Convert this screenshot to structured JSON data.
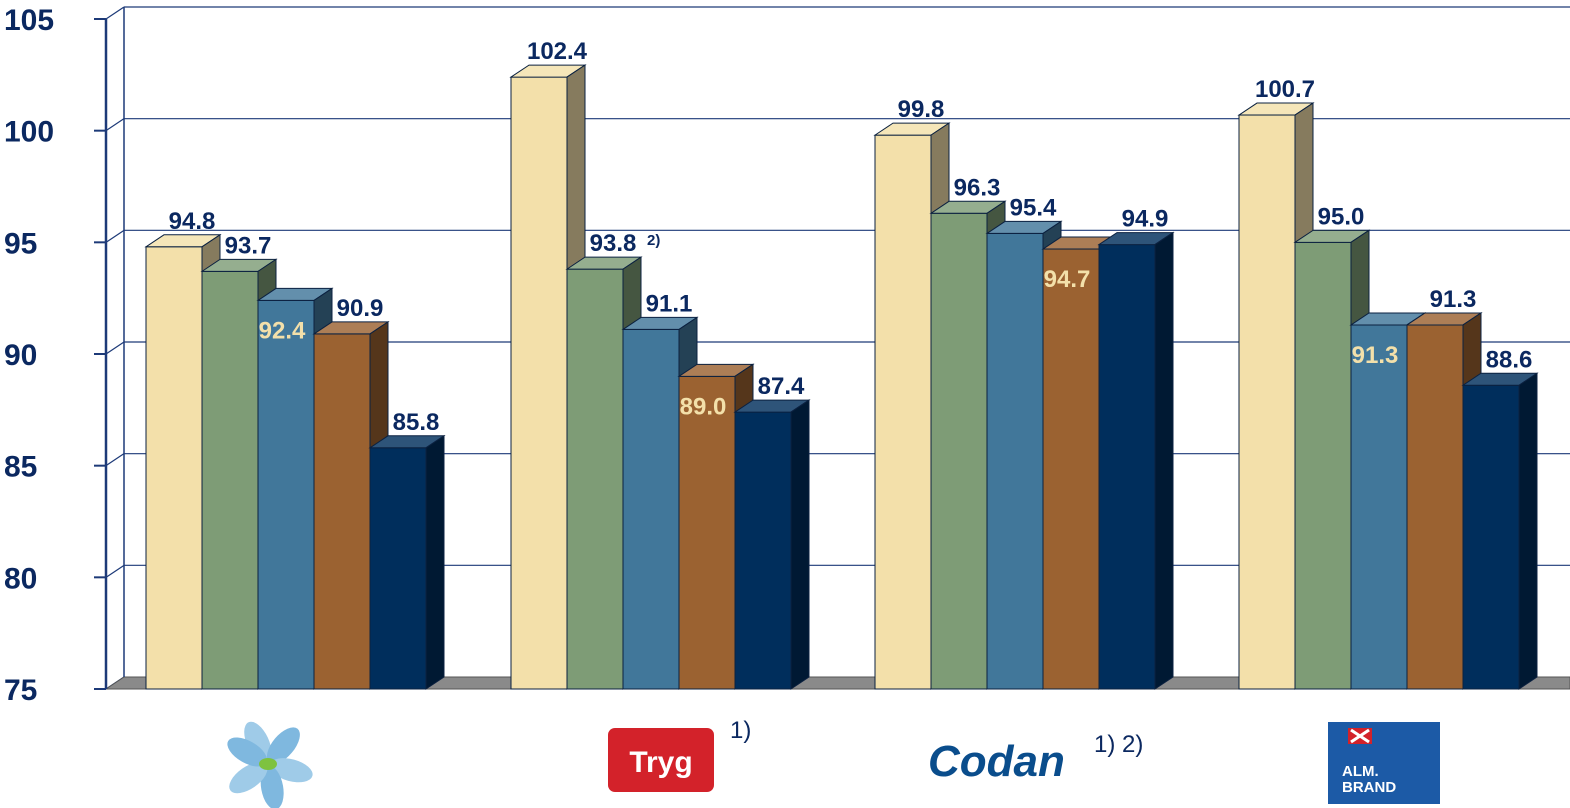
{
  "chart_data": {
    "type": "bar",
    "ylim": [
      75,
      105
    ],
    "yticks": [
      75,
      80,
      85,
      90,
      95,
      100,
      105
    ],
    "grid": true,
    "categories": [
      "",
      "Tryg",
      "Codan",
      "ALM. BRAND"
    ],
    "category_footnotes": [
      "",
      "1)",
      "1) 2)",
      ""
    ],
    "series_colors": [
      "#f3e0aa",
      "#7e9c76",
      "#41779a",
      "#9b6231",
      "#002e5c"
    ],
    "values": [
      [
        94.8,
        93.7,
        92.4,
        90.9,
        85.8
      ],
      [
        102.4,
        93.8,
        91.1,
        89.0,
        87.4
      ],
      [
        99.8,
        96.3,
        95.4,
        94.7,
        94.9
      ],
      [
        100.7,
        95.0,
        91.3,
        91.3,
        88.6
      ]
    ],
    "value_labels": [
      [
        "94.8",
        "93.7",
        "92.4",
        "90.9",
        "85.8"
      ],
      [
        "102.4",
        "93.8",
        "91.1",
        "89.0",
        "87.4"
      ],
      [
        "99.8",
        "96.3",
        "95.4",
        "94.7",
        "94.9"
      ],
      [
        "100.7",
        "95.0",
        "91.3",
        "91.3",
        "88.6"
      ]
    ],
    "inside_labels": [
      [
        false,
        false,
        true,
        false,
        false
      ],
      [
        false,
        false,
        false,
        true,
        false
      ],
      [
        false,
        false,
        false,
        true,
        false
      ],
      [
        false,
        false,
        true,
        false,
        false
      ]
    ],
    "label_notes": [
      [
        "",
        "",
        "",
        "",
        ""
      ],
      [
        "",
        "2)",
        "",
        "",
        ""
      ],
      [
        "",
        "",
        "",
        "",
        ""
      ],
      [
        "",
        "",
        "",
        "",
        ""
      ]
    ]
  },
  "logos": {
    "tryg": "Tryg",
    "codan": "Codan",
    "almbrand_line1": "ALM.",
    "almbrand_line2": "BRAND"
  }
}
